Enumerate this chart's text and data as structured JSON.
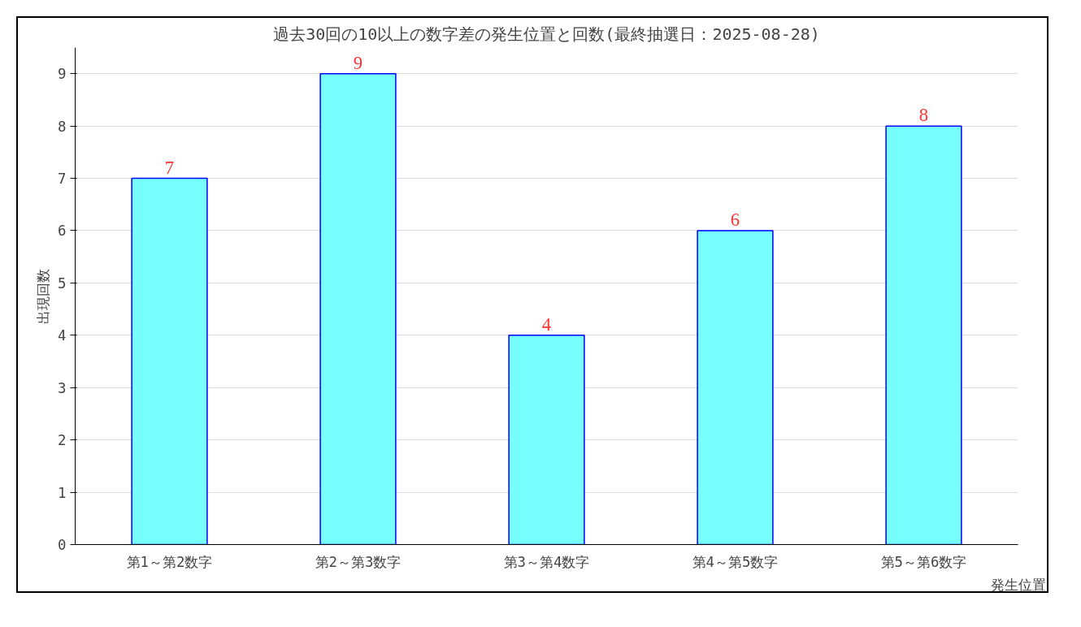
{
  "chart_data": {
    "type": "bar",
    "title": "過去30回の10以上の数字差の発生位置と回数(最終抽選日：2025-08-28)",
    "xlabel": "発生位置",
    "ylabel": "出現回数",
    "categories": [
      "第1～第2数字",
      "第2～第3数字",
      "第3～第4数字",
      "第4～第5数字",
      "第5～第6数字"
    ],
    "values": [
      7,
      9,
      4,
      6,
      8
    ],
    "color": "#77ffff",
    "ylim": [
      0,
      9.5
    ],
    "yticks": [
      0,
      1,
      2,
      3,
      4,
      5,
      6,
      7,
      8,
      9
    ],
    "grid": "y",
    "data_labels": true
  }
}
